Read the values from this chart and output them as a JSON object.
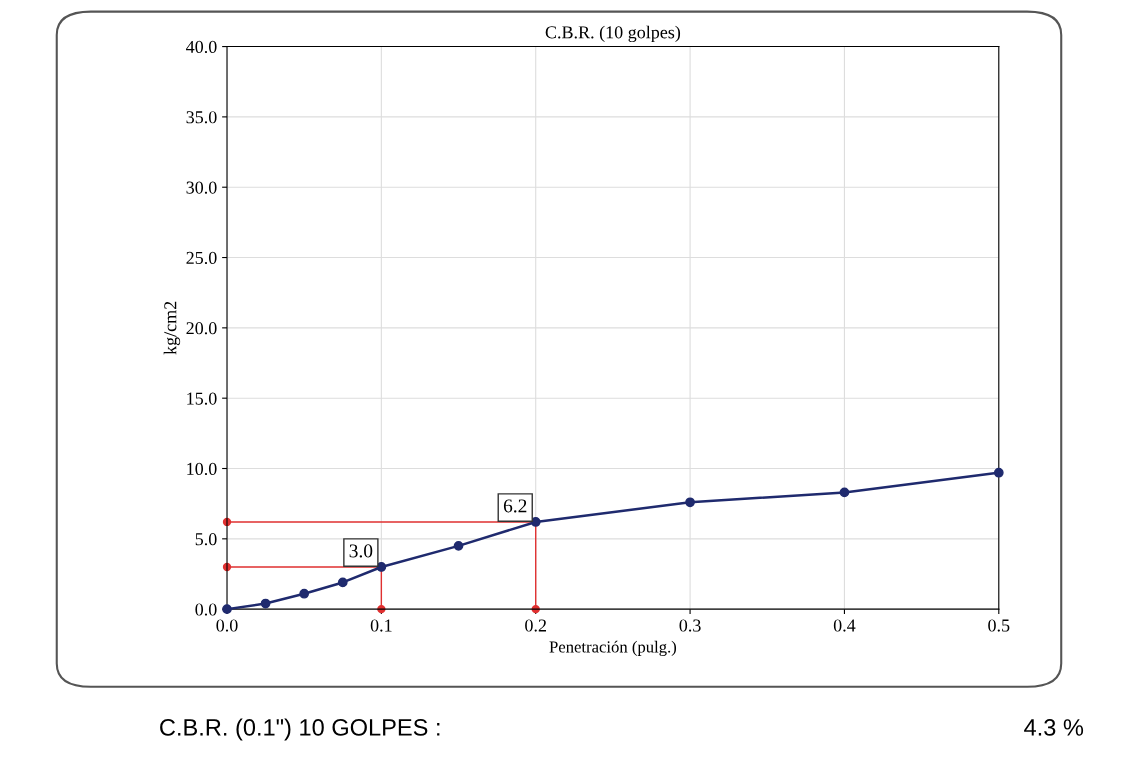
{
  "chart_data": {
    "type": "line",
    "title": "C.B.R. (10 golpes)",
    "xlabel": "Penetración (pulg.)",
    "ylabel": "kg/cm2",
    "x": [
      0,
      0.025,
      0.05,
      0.075,
      0.1,
      0.15,
      0.2,
      0.3,
      0.4,
      0.5
    ],
    "series": [
      {
        "color": "#1f2a6e",
        "values": [
          0,
          0.4,
          1.1,
          1.9,
          3.0,
          4.5,
          6.2,
          7.6,
          8.3,
          9.7
        ],
        "marker": "circle"
      },
      {
        "type": "line",
        "color": "#e03030",
        "x": [
          0,
          0.1,
          0.1
        ],
        "values": [
          3.0,
          3.0,
          0
        ],
        "marker": "circle"
      },
      {
        "type": "line",
        "color": "#e03030",
        "x": [
          0,
          0.2,
          0.2
        ],
        "values": [
          6.2,
          6.2,
          0
        ],
        "marker": "circle"
      }
    ],
    "xlim": [
      0,
      0.5
    ],
    "xticks": [
      {
        "value": 0,
        "label": "0.0"
      },
      0.1,
      0.2,
      0.3,
      0.4,
      0.5
    ],
    "ylim": [
      0,
      40
    ],
    "yticks": [
      {
        "value": 0,
        "label": "0.0"
      },
      {
        "value": 5,
        "label": "5.0"
      },
      {
        "value": 10,
        "label": "10.0"
      },
      {
        "value": 15,
        "label": "15.0"
      },
      {
        "value": 20,
        "label": "20.0"
      },
      {
        "value": 25,
        "label": "25.0"
      },
      {
        "value": 30,
        "label": "30.0"
      },
      {
        "value": 35,
        "label": "35.0"
      },
      {
        "value": 40,
        "label": "40.0"
      }
    ],
    "grid": true,
    "annotations": [
      {
        "text": "3.0",
        "x": 0.1,
        "y": 3.0
      },
      {
        "text": "6.2",
        "x": 0.2,
        "y": 6.2
      },
      "C.B.R. (0.1\") 10 GOLPES :",
      "4.3 %"
    ]
  }
}
